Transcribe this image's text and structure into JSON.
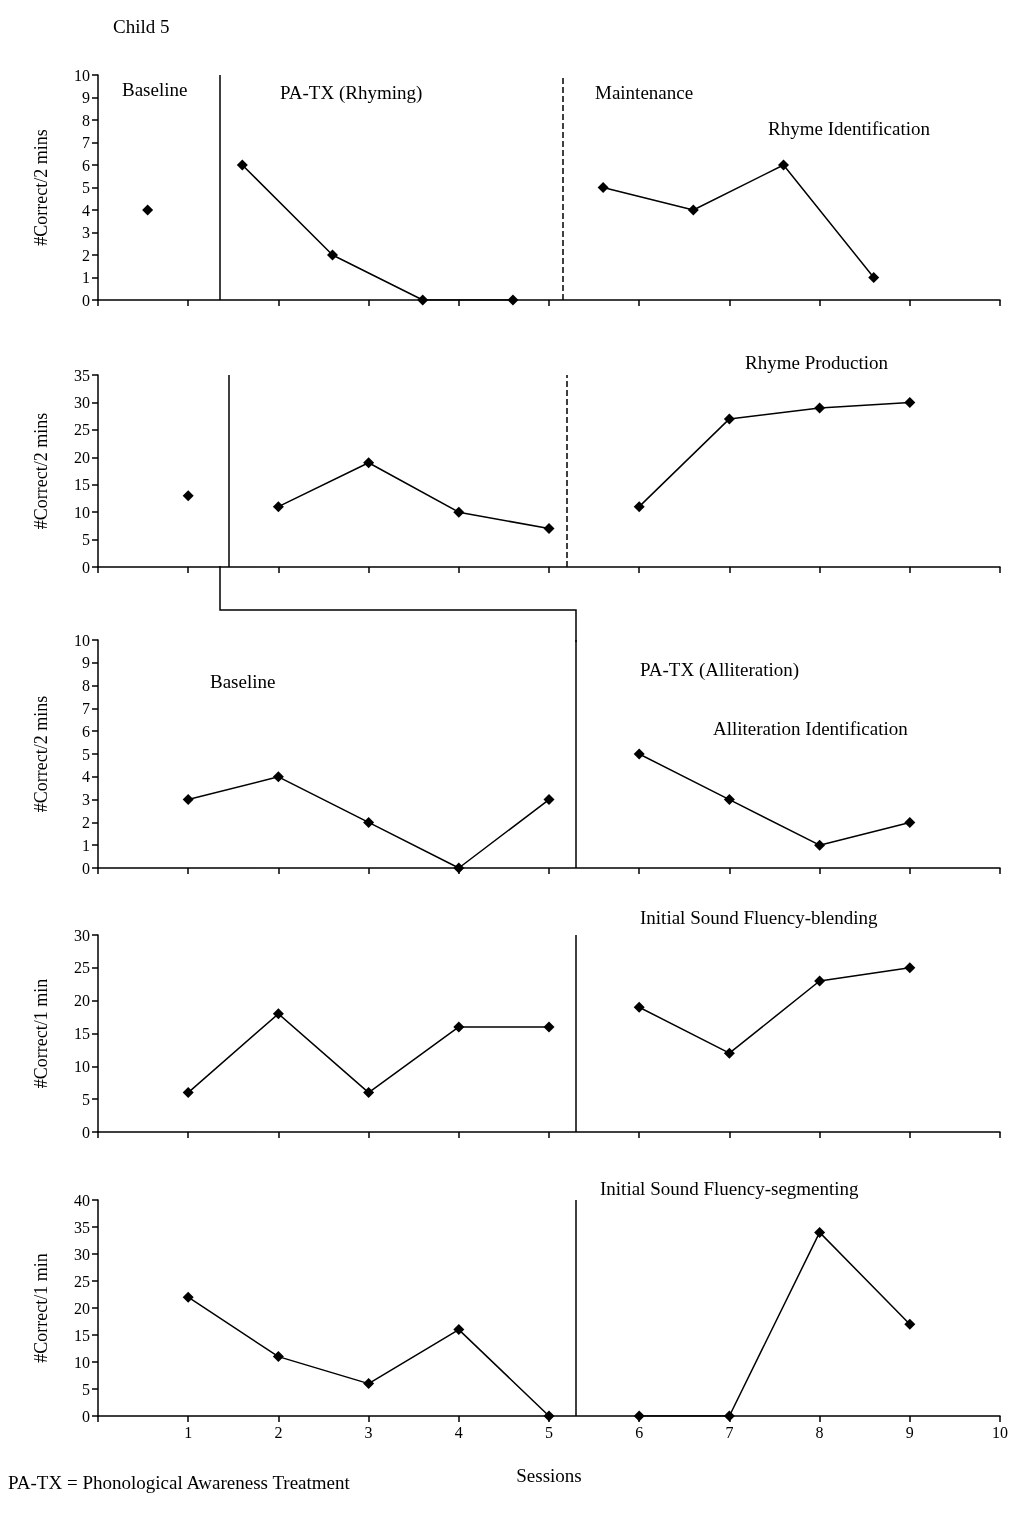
{
  "chart_data": [
    {
      "type": "line",
      "title": "Child 5",
      "ylabel": "#Correct/2 mins",
      "annotations": [
        "Baseline",
        "PA-TX (Rhyming)",
        "Maintenance",
        "Rhyme Identification"
      ],
      "xlim": [
        0,
        10
      ],
      "xticks": [
        0,
        1,
        2,
        3,
        4,
        5,
        6,
        7,
        8,
        9,
        10
      ],
      "ylim": [
        0,
        10
      ],
      "yticks": [
        0,
        1,
        2,
        3,
        4,
        5,
        6,
        7,
        8,
        9,
        10
      ],
      "tick_labels": "y",
      "grid": false,
      "legend": false,
      "marker": "diamond",
      "line_style": "solid",
      "series": [
        {
          "color": "#000000",
          "x": [
            0.55
          ],
          "values": [
            4
          ]
        },
        {
          "color": "#000000",
          "x": [
            1.6,
            2.6,
            3.6,
            4.6
          ],
          "values": [
            6,
            2,
            0,
            0
          ]
        },
        {
          "color": "#000000",
          "x": [
            5.6,
            6.6,
            7.6,
            8.6
          ],
          "values": [
            5,
            4,
            6,
            1
          ]
        }
      ],
      "ref_lines": [
        {
          "axis": "x",
          "value": 1.35,
          "color": "#000000",
          "line_style": "solid"
        },
        {
          "axis": "x",
          "value": 5.15,
          "color": "#000000",
          "line_style": "dashed"
        }
      ]
    },
    {
      "type": "line",
      "ylabel": "#Correct/2 mins",
      "annotations": [
        "Rhyme Production"
      ],
      "xlim": [
        0,
        10
      ],
      "xticks": [
        0,
        1,
        2,
        3,
        4,
        5,
        6,
        7,
        8,
        9,
        10
      ],
      "ylim": [
        0,
        35
      ],
      "yticks": [
        0,
        5,
        10,
        15,
        20,
        25,
        30,
        35
      ],
      "tick_labels": "y",
      "grid": false,
      "legend": false,
      "marker": "diamond",
      "line_style": "solid",
      "series": [
        {
          "color": "#000000",
          "x": [
            1
          ],
          "values": [
            13
          ]
        },
        {
          "color": "#000000",
          "x": [
            2,
            3,
            4,
            5
          ],
          "values": [
            11,
            19,
            10,
            7
          ]
        },
        {
          "color": "#000000",
          "x": [
            6,
            7,
            8,
            9
          ],
          "values": [
            11,
            27,
            29,
            30
          ]
        }
      ],
      "ref_lines": [
        {
          "axis": "x",
          "value": 1.45,
          "color": "#000000",
          "line_style": "solid"
        },
        {
          "axis": "x",
          "value": 5.2,
          "color": "#000000",
          "line_style": "dashed"
        }
      ]
    },
    {
      "type": "line",
      "ylabel": "#Correct/2 mins",
      "annotations": [
        "Baseline",
        "PA-TX (Alliteration)",
        "Alliteration Identification"
      ],
      "xlim": [
        0,
        10
      ],
      "xticks": [
        0,
        1,
        2,
        3,
        4,
        5,
        6,
        7,
        8,
        9,
        10
      ],
      "ylim": [
        0,
        10
      ],
      "yticks": [
        0,
        1,
        2,
        3,
        4,
        5,
        6,
        7,
        8,
        9,
        10
      ],
      "tick_labels": "y",
      "grid": false,
      "legend": false,
      "marker": "diamond",
      "line_style": "solid",
      "series": [
        {
          "color": "#000000",
          "x": [
            1,
            2,
            3,
            4,
            5
          ],
          "values": [
            3,
            4,
            2,
            0,
            3
          ]
        },
        {
          "color": "#000000",
          "x": [
            6,
            7,
            8,
            9
          ],
          "values": [
            5,
            3,
            1,
            2
          ]
        }
      ],
      "ref_lines": [
        {
          "axis": "x",
          "value": 5.3,
          "color": "#000000",
          "line_style": "solid"
        }
      ]
    },
    {
      "type": "line",
      "ylabel": "#Correct/1 min",
      "annotations": [
        "Initial Sound Fluency-blending"
      ],
      "xlim": [
        0,
        10
      ],
      "xticks": [
        0,
        1,
        2,
        3,
        4,
        5,
        6,
        7,
        8,
        9,
        10
      ],
      "ylim": [
        0,
        30
      ],
      "yticks": [
        0,
        5,
        10,
        15,
        20,
        25,
        30
      ],
      "tick_labels": "y",
      "grid": false,
      "legend": false,
      "marker": "diamond",
      "line_style": "solid",
      "series": [
        {
          "color": "#000000",
          "x": [
            1,
            2,
            3,
            4,
            5
          ],
          "values": [
            6,
            18,
            6,
            16,
            16
          ]
        },
        {
          "color": "#000000",
          "x": [
            6,
            7,
            8,
            9
          ],
          "values": [
            19,
            12,
            23,
            25
          ]
        }
      ],
      "ref_lines": [
        {
          "axis": "x",
          "value": 5.3,
          "color": "#000000",
          "line_style": "solid"
        }
      ]
    },
    {
      "type": "line",
      "ylabel": "#Correct/1 min",
      "xlabel": "Sessions",
      "annotations": [
        "Initial Sound Fluency-segmenting",
        "PA-TX = Phonological Awareness Treatment"
      ],
      "xlim": [
        0,
        10
      ],
      "xticks": [
        {
          "value": 0,
          "label": null
        },
        1,
        2,
        3,
        4,
        5,
        6,
        7,
        8,
        9,
        10
      ],
      "ylim": [
        0,
        40
      ],
      "yticks": [
        0,
        5,
        10,
        15,
        20,
        25,
        30,
        35,
        40
      ],
      "grid": false,
      "legend": false,
      "marker": "diamond",
      "line_style": "solid",
      "series": [
        {
          "color": "#000000",
          "x": [
            1,
            2,
            3,
            4,
            5
          ],
          "values": [
            22,
            11,
            6,
            16,
            0
          ]
        },
        {
          "color": "#000000",
          "x": [
            6,
            7,
            8,
            9
          ],
          "values": [
            0,
            0,
            34,
            17
          ]
        }
      ],
      "ref_lines": [
        {
          "axis": "x",
          "value": 5.3,
          "color": "#000000",
          "line_style": "solid"
        }
      ]
    }
  ]
}
